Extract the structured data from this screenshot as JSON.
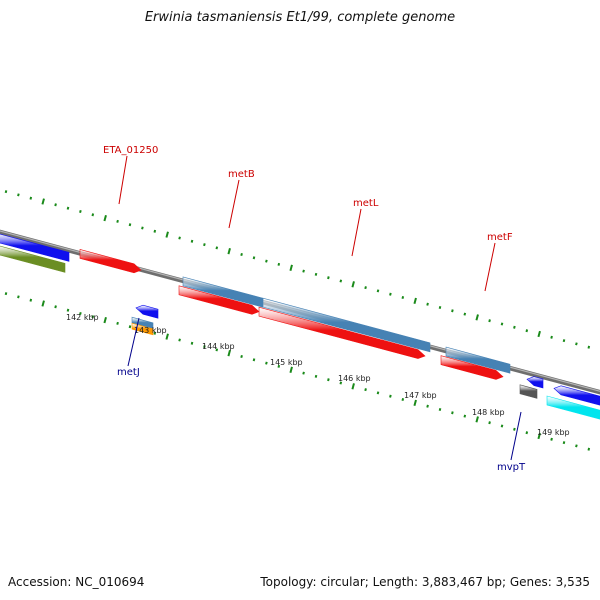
{
  "title": "Erwinia tasmaniensis Et1/99, complete genome",
  "accession_text": "Accession: NC_010694",
  "stats_text": "Topology: circular; Length: 3,883,467 bp; Genes: 3,535",
  "scale_labels": [
    "142 kbp",
    "143 kbp",
    "144 kbp",
    "145 kbp",
    "146 kbp",
    "147 kbp",
    "148 kbp",
    "149 kbp"
  ],
  "gene_labels": [
    {
      "text": "ETA_01250",
      "color": "#cc0000"
    },
    {
      "text": "metB",
      "color": "#cc0000"
    },
    {
      "text": "metL",
      "color": "#cc0000"
    },
    {
      "text": "metF",
      "color": "#cc0000"
    },
    {
      "text": "metJ",
      "color": "#00008b"
    },
    {
      "text": "mvpT",
      "color": "#00008b"
    }
  ],
  "colors": {
    "backbone": "#8a8a8a",
    "red": "#ee1111",
    "steelblue": "#4682b4",
    "blue": "#1010ee",
    "olive": "#6b8e23",
    "cyan": "#00e5ee",
    "orange": "#ff9900",
    "gray": "#555555",
    "tick": "#1a8a1a",
    "label_red": "#cc0000",
    "label_blue": "#00008b"
  }
}
